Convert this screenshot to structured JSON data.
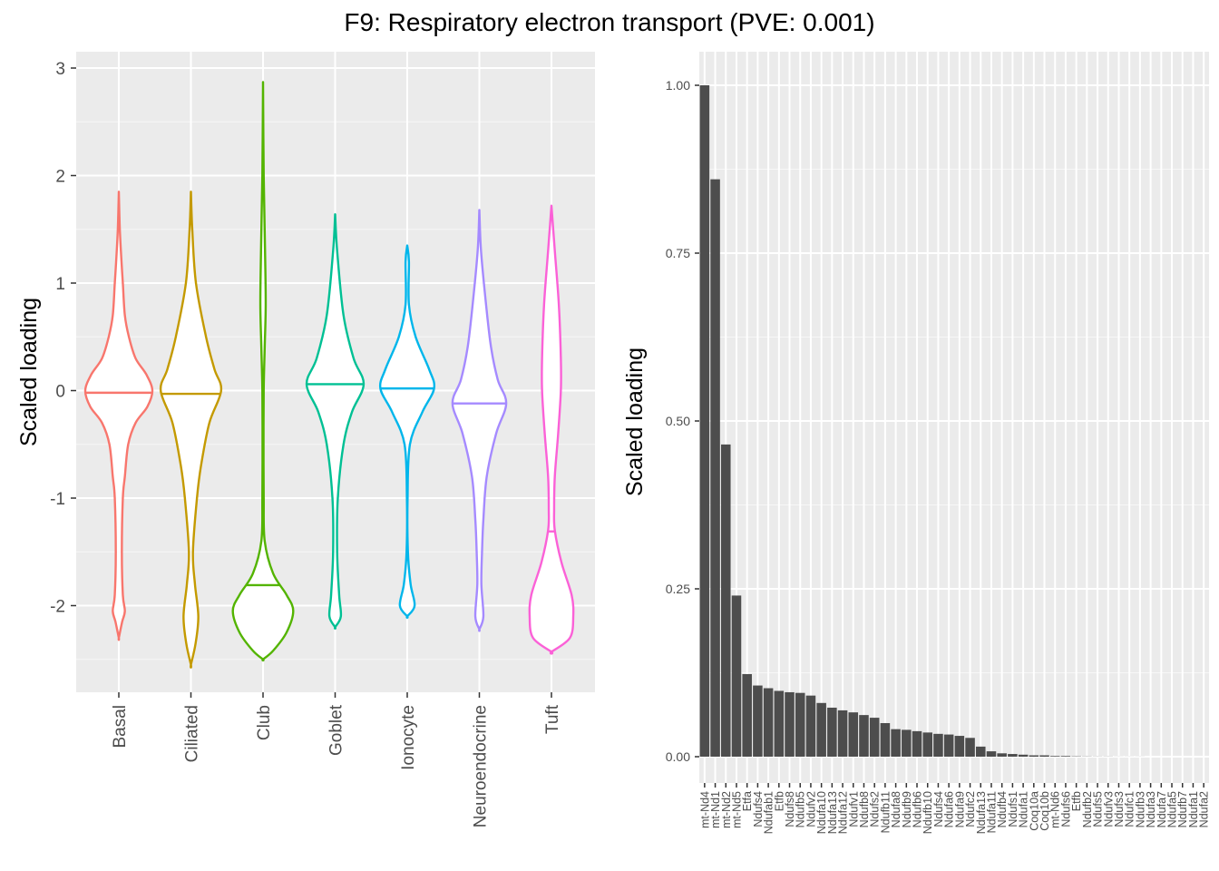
{
  "title": "F9: Respiratory electron transport (PVE: 0.001)",
  "chart_data": [
    {
      "type": "violin",
      "ylabel": "Scaled loading",
      "xlabel": "",
      "ylim": [
        -2.7,
        3.1
      ],
      "yticks": [
        -2,
        -1,
        0,
        1,
        2,
        3
      ],
      "ytick_labels": [
        "-2",
        "-1",
        "0",
        "1",
        "2",
        "3"
      ],
      "grid": true,
      "categories": [
        "Basal",
        "Ciliated",
        "Club",
        "Goblet",
        "Ionocyte",
        "Neuroendocrine",
        "Tuft"
      ],
      "colors": [
        "#F8766D",
        "#C49A00",
        "#53B400",
        "#00C094",
        "#00B6EB",
        "#A58AFF",
        "#FB61D7"
      ],
      "medians": [
        -0.02,
        -0.03,
        -1.81,
        0.06,
        0.02,
        -0.12,
        -1.31
      ],
      "ranges": [
        [
          -2.3,
          1.85
        ],
        [
          -2.55,
          1.85
        ],
        [
          -2.5,
          2.87
        ],
        [
          -2.2,
          1.64
        ],
        [
          -2.1,
          1.35
        ],
        [
          -2.22,
          1.68
        ],
        [
          -2.43,
          1.72
        ]
      ],
      "density_profiles": [
        [
          [
            1.85,
            0.0
          ],
          [
            1.5,
            0.03
          ],
          [
            1.2,
            0.08
          ],
          [
            1.0,
            0.12
          ],
          [
            0.7,
            0.18
          ],
          [
            0.5,
            0.3
          ],
          [
            0.3,
            0.5
          ],
          [
            0.15,
            0.82
          ],
          [
            0.0,
            1.0
          ],
          [
            -0.15,
            0.85
          ],
          [
            -0.3,
            0.5
          ],
          [
            -0.5,
            0.28
          ],
          [
            -0.8,
            0.18
          ],
          [
            -1.0,
            0.12
          ],
          [
            -1.5,
            0.09
          ],
          [
            -1.9,
            0.12
          ],
          [
            -2.05,
            0.18
          ],
          [
            -2.15,
            0.1
          ],
          [
            -2.3,
            0.0
          ]
        ],
        [
          [
            1.85,
            0.0
          ],
          [
            1.5,
            0.04
          ],
          [
            1.0,
            0.15
          ],
          [
            0.5,
            0.45
          ],
          [
            0.2,
            0.7
          ],
          [
            0.0,
            0.9
          ],
          [
            -0.3,
            0.55
          ],
          [
            -0.7,
            0.3
          ],
          [
            -1.0,
            0.18
          ],
          [
            -1.5,
            0.06
          ],
          [
            -1.8,
            0.12
          ],
          [
            -2.1,
            0.22
          ],
          [
            -2.35,
            0.14
          ],
          [
            -2.55,
            0.0
          ]
        ],
        [
          [
            2.87,
            0.0
          ],
          [
            2.0,
            0.02
          ],
          [
            1.3,
            0.06
          ],
          [
            0.8,
            0.08
          ],
          [
            0.4,
            0.05
          ],
          [
            0.0,
            0.02
          ],
          [
            -0.5,
            0.015
          ],
          [
            -1.0,
            0.02
          ],
          [
            -1.4,
            0.05
          ],
          [
            -1.7,
            0.3
          ],
          [
            -1.9,
            0.7
          ],
          [
            -2.05,
            0.9
          ],
          [
            -2.25,
            0.7
          ],
          [
            -2.42,
            0.3
          ],
          [
            -2.5,
            0.0
          ]
        ],
        [
          [
            1.64,
            0.0
          ],
          [
            1.3,
            0.06
          ],
          [
            0.7,
            0.25
          ],
          [
            0.3,
            0.55
          ],
          [
            0.06,
            0.85
          ],
          [
            -0.2,
            0.5
          ],
          [
            -0.5,
            0.25
          ],
          [
            -1.0,
            0.08
          ],
          [
            -1.5,
            0.06
          ],
          [
            -1.9,
            0.12
          ],
          [
            -2.1,
            0.17
          ],
          [
            -2.2,
            0.0
          ]
        ],
        [
          [
            1.35,
            0.0
          ],
          [
            1.2,
            0.05
          ],
          [
            0.8,
            0.05
          ],
          [
            0.5,
            0.25
          ],
          [
            0.2,
            0.65
          ],
          [
            0.02,
            0.8
          ],
          [
            -0.2,
            0.45
          ],
          [
            -0.5,
            0.08
          ],
          [
            -1.0,
            0.01
          ],
          [
            -1.5,
            0.02
          ],
          [
            -1.8,
            0.1
          ],
          [
            -2.0,
            0.22
          ],
          [
            -2.1,
            0.0
          ]
        ],
        [
          [
            1.68,
            0.0
          ],
          [
            1.3,
            0.05
          ],
          [
            0.8,
            0.2
          ],
          [
            0.4,
            0.35
          ],
          [
            0.1,
            0.55
          ],
          [
            -0.12,
            0.8
          ],
          [
            -0.4,
            0.5
          ],
          [
            -0.8,
            0.22
          ],
          [
            -1.2,
            0.12
          ],
          [
            -1.5,
            0.08
          ],
          [
            -1.8,
            0.06
          ],
          [
            -2.1,
            0.12
          ],
          [
            -2.22,
            0.0
          ]
        ],
        [
          [
            1.72,
            0.0
          ],
          [
            1.3,
            0.1
          ],
          [
            0.8,
            0.22
          ],
          [
            0.3,
            0.28
          ],
          [
            0.0,
            0.28
          ],
          [
            -0.4,
            0.2
          ],
          [
            -0.8,
            0.1
          ],
          [
            -1.1,
            0.08
          ],
          [
            -1.3,
            0.1
          ],
          [
            -1.6,
            0.3
          ],
          [
            -1.9,
            0.6
          ],
          [
            -2.1,
            0.65
          ],
          [
            -2.3,
            0.55
          ],
          [
            -2.43,
            0.0
          ]
        ]
      ]
    },
    {
      "type": "bar",
      "ylabel": "Scaled loading",
      "xlabel": "",
      "ylim": [
        0,
        1.06
      ],
      "yticks": [
        0,
        0.25,
        0.5,
        0.75,
        1
      ],
      "ytick_labels": [
        "0.00",
        "0.25",
        "0.50",
        "0.75",
        "1.00"
      ],
      "grid": true,
      "bar_color": "#4d4d4d",
      "categories": [
        "mt-Nd4",
        "mt-Nd1",
        "mt-Nd2",
        "mt-Nd5",
        "Etfa",
        "Ndufs4",
        "Ndufab1",
        "Etfb",
        "Ndufs8",
        "Ndufb5",
        "Ndufv2",
        "Ndufa10",
        "Ndufa13",
        "Ndufa12",
        "Ndufv1",
        "Ndufb8",
        "Ndufs2",
        "Ndufb11",
        "Ndufa8",
        "Ndufb9",
        "Ndufb6",
        "Ndufb10",
        "Ndufs4",
        "Ndufa6",
        "Ndufa9",
        "Ndufc2",
        "Ndufa13",
        "Ndufa11",
        "Ndufb4",
        "Ndufs1",
        "Ndufa1",
        "Coq10a",
        "Coq10b",
        "mt-Nd6",
        "Ndufs6",
        "Etfb",
        "Ndufb2",
        "Ndufs5",
        "Ndufv3",
        "Ndufs3",
        "Ndufc1",
        "Ndufb3",
        "Ndufa3",
        "Ndufa7",
        "Ndufa5",
        "Ndufb7",
        "Ndufa1",
        "Ndufa2"
      ],
      "values": [
        1.0,
        0.86,
        0.465,
        0.24,
        0.123,
        0.106,
        0.102,
        0.098,
        0.096,
        0.095,
        0.091,
        0.08,
        0.073,
        0.069,
        0.066,
        0.062,
        0.058,
        0.05,
        0.041,
        0.04,
        0.038,
        0.036,
        0.034,
        0.033,
        0.031,
        0.028,
        0.015,
        0.008,
        0.005,
        0.004,
        0.003,
        0.002,
        0.002,
        0.001,
        0.001,
        0.0005,
        0.0003,
        0.0002,
        0.0002,
        0.0001,
        0.0001,
        0.0001,
        0.0,
        0.0,
        0.0,
        0.0,
        0.0,
        0.0
      ]
    }
  ]
}
